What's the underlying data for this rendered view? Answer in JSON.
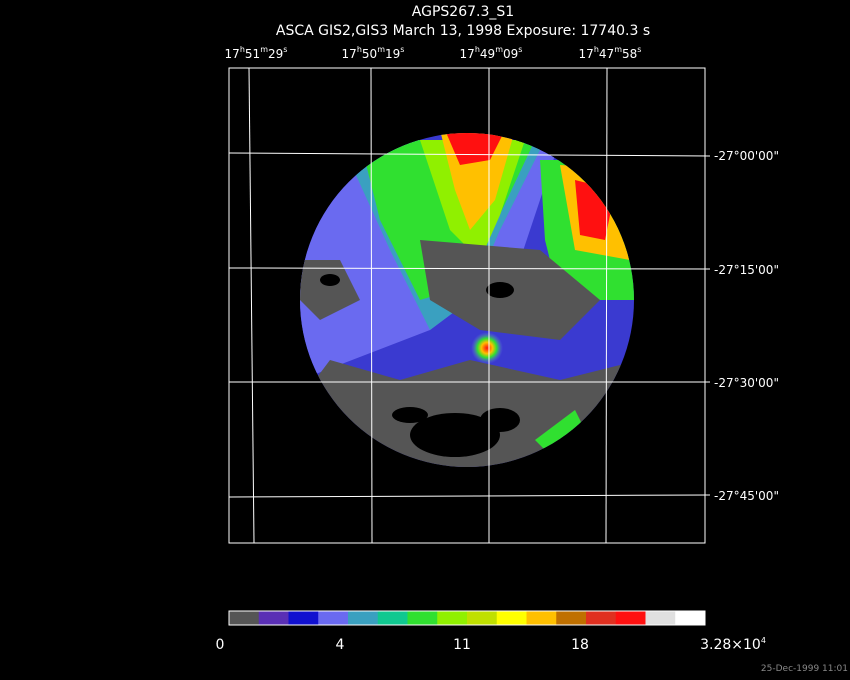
{
  "header": {
    "title": "AGPS267.3_S1",
    "subtitle": "ASCA GIS2,GIS3 March 13, 1998 Exposure: 17740.3 s"
  },
  "ra_labels": [
    [
      "17",
      "h",
      "51",
      "m",
      "29",
      "s"
    ],
    [
      "17",
      "h",
      "50",
      "m",
      "19",
      "s"
    ],
    [
      "17",
      "h",
      "49",
      "m",
      "09",
      "s"
    ],
    [
      "17",
      "h",
      "47",
      "m",
      "58",
      "s"
    ]
  ],
  "dec_labels": [
    "-27°00'00\"",
    "-27°15'00\"",
    "-27°30'00\"",
    "-27°45'00\""
  ],
  "colorbar": {
    "labels": [
      [
        "0"
      ],
      [
        "4"
      ],
      [
        "11"
      ],
      [
        "18"
      ],
      [
        "3.28×10",
        "4"
      ]
    ]
  },
  "footer": {
    "date": "25-Dec-1999 11:01"
  }
}
